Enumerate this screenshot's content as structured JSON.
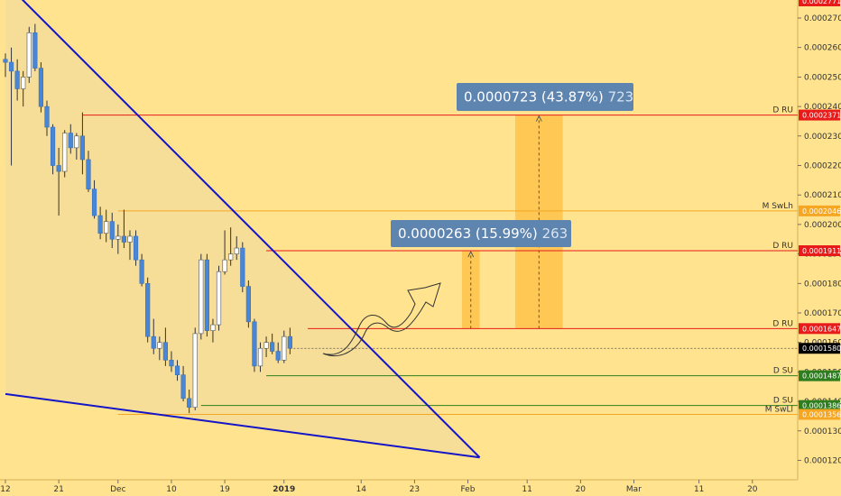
{
  "chart_data": {
    "type": "candlestick",
    "title": "",
    "price_tags": {
      "top_cut": "0.0002771"
    },
    "y_ticks": [
      "0.0002700",
      "0.0002600",
      "0.0002500",
      "0.0002400",
      "0.0002300",
      "0.0002200",
      "0.0002100",
      "0.0002000",
      "0.0001900",
      "0.0001800",
      "0.0001700",
      "0.0001600",
      "0.0001500",
      "0.0001400",
      "0.0001300",
      "0.0001200"
    ],
    "x_ticks": [
      {
        "day": 0,
        "label": "12"
      },
      {
        "day": 9,
        "label": "21"
      },
      {
        "day": 19,
        "label": "Dec"
      },
      {
        "day": 28,
        "label": "10"
      },
      {
        "day": 37,
        "label": "19"
      },
      {
        "day": 47,
        "label": "2019"
      },
      {
        "day": 60,
        "label": "14"
      },
      {
        "day": 69,
        "label": "23"
      },
      {
        "day": 78,
        "label": "Feb"
      },
      {
        "day": 88,
        "label": "11"
      },
      {
        "day": 97,
        "label": "20"
      },
      {
        "day": 106,
        "label": "Mar"
      },
      {
        "day": 117,
        "label": "11"
      },
      {
        "day": 126,
        "label": "20"
      }
    ],
    "levels": [
      {
        "name": "D RU",
        "value": 0.0002371,
        "tag": "0.0002371",
        "color": "#e81b1b",
        "tag_bg": "#e81b1b",
        "start_day": 13
      },
      {
        "name": "M SwLh",
        "value": 0.0002046,
        "tag": "0.0002046",
        "color": "#f5a623",
        "tag_bg": "#f5a623",
        "start_day": 19
      },
      {
        "name": "D RU",
        "value": 0.0001911,
        "tag": "0.0001911",
        "color": "#e81b1b",
        "tag_bg": "#e81b1b",
        "start_day": 44
      },
      {
        "name": "D RU",
        "value": 0.0001647,
        "tag": "0.0001647",
        "color": "#e81b1b",
        "tag_bg": "#e81b1b",
        "start_day": 51
      },
      {
        "name": "D SU",
        "value": 0.0001487,
        "tag": "0.0001487",
        "color": "#2e7d1e",
        "tag_bg": "#2e7d1e",
        "start_day": 44
      },
      {
        "name": "D SU",
        "value": 0.0001386,
        "tag": "0.0001386",
        "color": "#2e7d1e",
        "tag_bg": "#2e7d1e",
        "start_day": 33
      },
      {
        "name": "M SwLl",
        "value": 0.0001356,
        "tag": "0.0001356",
        "color": "#f5a623",
        "tag_bg": "#f5a623",
        "start_day": 19
      }
    ],
    "last_price": {
      "value": 0.000158,
      "tag": "0.0001580"
    },
    "measurements": [
      {
        "text_main": "0.0000263 (15.99%)",
        "text_ticks": "263",
        "x_from_day": 77,
        "x_to_day": 80,
        "y_from": 0.0001647,
        "y_to": 0.0001911
      },
      {
        "text_main": "0.0000723 (43.87%)",
        "text_ticks": "723",
        "x_from_day": 86,
        "x_to_day": 94,
        "y_from": 0.0001647,
        "y_to": 0.0002371
      }
    ],
    "trendlines": [
      {
        "from": [
          0,
          0.000282
        ],
        "to": [
          80,
          0.000121
        ]
      },
      {
        "from": [
          0,
          0.0001425
        ],
        "to": [
          80,
          0.000121
        ]
      }
    ],
    "candles": [
      [
        0.000256,
        0.000258,
        0.00025,
        0.000255
      ],
      [
        0.000255,
        0.00026,
        0.00022,
        0.000252
      ],
      [
        0.000252,
        0.000256,
        0.000242,
        0.000246
      ],
      [
        0.000246,
        0.000252,
        0.00024,
        0.00025
      ],
      [
        0.00025,
        0.000267,
        0.000248,
        0.000265
      ],
      [
        0.000265,
        0.000268,
        0.000252,
        0.000253
      ],
      [
        0.000253,
        0.000255,
        0.000238,
        0.00024
      ],
      [
        0.00024,
        0.000242,
        0.00023,
        0.000233
      ],
      [
        0.000233,
        0.000234,
        0.000217,
        0.00022
      ],
      [
        0.00022,
        0.000226,
        0.000203,
        0.000218
      ],
      [
        0.000218,
        0.000232,
        0.000216,
        0.000231
      ],
      [
        0.000231,
        0.000234,
        0.000224,
        0.000226
      ],
      [
        0.000226,
        0.000231,
        0.000222,
        0.00023
      ],
      [
        0.00023,
        0.000238,
        0.000217,
        0.000222
      ],
      [
        0.000222,
        0.000225,
        0.000211,
        0.000212
      ],
      [
        0.000212,
        0.000215,
        0.000202,
        0.000203
      ],
      [
        0.000203,
        0.000206,
        0.000195,
        0.000197
      ],
      [
        0.000197,
        0.000205,
        0.000194,
        0.000201
      ],
      [
        0.000201,
        0.000204,
        0.000192,
        0.000195
      ],
      [
        0.000195,
        0.0002,
        0.00019,
        0.000196
      ],
      [
        0.000196,
        0.000205,
        0.000192,
        0.000194
      ],
      [
        0.000194,
        0.000198,
        0.000188,
        0.000196
      ],
      [
        0.000196,
        0.000198,
        0.000186,
        0.000188
      ],
      [
        0.000188,
        0.00019,
        0.000179,
        0.00018
      ],
      [
        0.00018,
        0.000182,
        0.00016,
        0.000162
      ],
      [
        0.000162,
        0.000168,
        0.000156,
        0.000158
      ],
      [
        0.000158,
        0.000162,
        0.000154,
        0.00016
      ],
      [
        0.00016,
        0.000165,
        0.000152,
        0.000154
      ],
      [
        0.000154,
        0.000157,
        0.00015,
        0.000152
      ],
      [
        0.000152,
        0.000154,
        0.000147,
        0.000149
      ],
      [
        0.000149,
        0.000152,
        0.00014,
        0.000141
      ],
      [
        0.000141,
        0.000144,
        0.000136,
        0.000138
      ],
      [
        0.000138,
        0.000165,
        0.000137,
        0.000163
      ],
      [
        0.000163,
        0.00019,
        0.000161,
        0.000188
      ],
      [
        0.000188,
        0.00019,
        0.000162,
        0.000164
      ],
      [
        0.000164,
        0.000168,
        0.00016,
        0.000166
      ],
      [
        0.000166,
        0.000186,
        0.000164,
        0.000184
      ],
      [
        0.000184,
        0.000198,
        0.000183,
        0.000188
      ],
      [
        0.000188,
        0.000199,
        0.000186,
        0.00019
      ],
      [
        0.00019,
        0.000196,
        0.000188,
        0.000192
      ],
      [
        0.000192,
        0.000194,
        0.000177,
        0.000179
      ],
      [
        0.000179,
        0.000181,
        0.000165,
        0.000167
      ],
      [
        0.000167,
        0.000168,
        0.00015,
        0.000152
      ],
      [
        0.000152,
        0.00016,
        0.00015,
        0.000158
      ],
      [
        0.000158,
        0.000162,
        0.000155,
        0.00016
      ],
      [
        0.00016,
        0.000163,
        0.000156,
        0.000157
      ],
      [
        0.000157,
        0.00016,
        0.000153,
        0.000154
      ],
      [
        0.000154,
        0.000164,
        0.000153,
        0.000162
      ],
      [
        0.000162,
        0.000165,
        0.000156,
        0.000158
      ]
    ],
    "colors": {
      "background": "#ffe38f",
      "bull": "#ffffff",
      "bear": "#4a86d6",
      "wick": "#333333",
      "trendline": "#1414c8",
      "projection": "#ffbf40",
      "label_bg": "#5e84b0",
      "last_price_bg": "#000000"
    }
  }
}
